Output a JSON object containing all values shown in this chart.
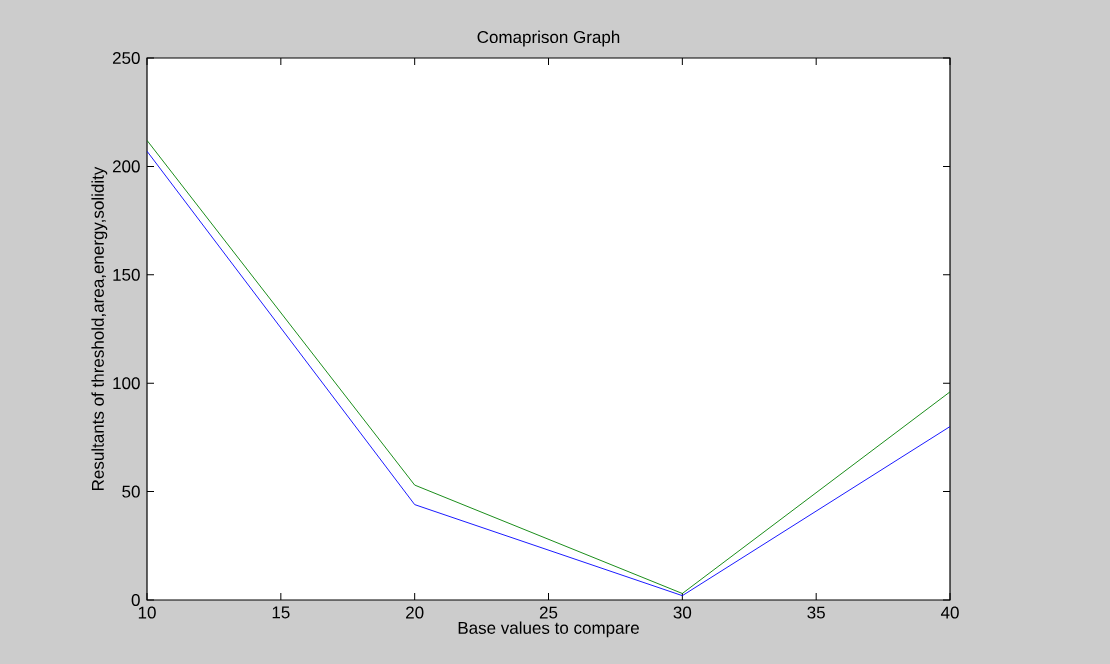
{
  "chart_data": {
    "type": "line",
    "title": "Comaprison Graph",
    "xlabel": "Base values to compare",
    "ylabel": "Resultants of threshold,area,energy,solidity",
    "x": [
      10,
      20,
      30,
      40
    ],
    "series": [
      {
        "color": "#0000ff",
        "values": [
          207,
          44,
          2,
          80
        ]
      },
      {
        "color": "#008000",
        "values": [
          212,
          53,
          3,
          96
        ]
      }
    ],
    "xlim": [
      10,
      40
    ],
    "ylim": [
      0,
      250
    ],
    "xticks": [
      10,
      15,
      20,
      25,
      30,
      35,
      40
    ],
    "yticks": [
      0,
      50,
      100,
      150,
      200,
      250
    ],
    "grid": false,
    "marker": "none",
    "line_style": "solid"
  }
}
